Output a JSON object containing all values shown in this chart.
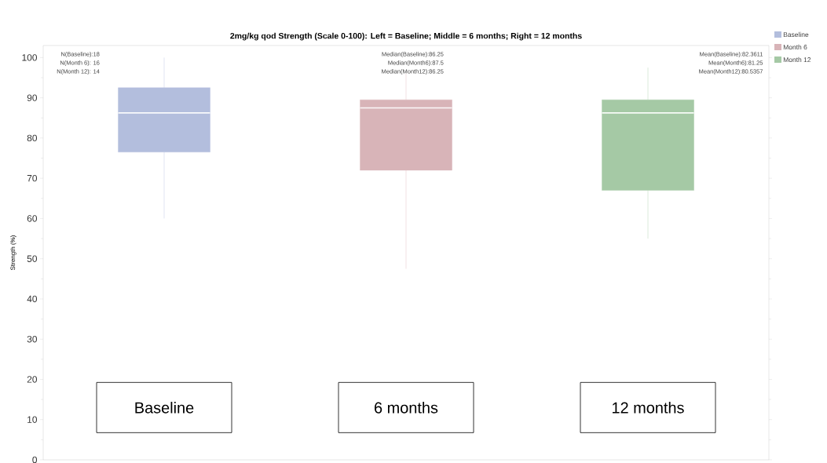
{
  "chart_data": {
    "type": "box",
    "title": "2mg/kg qod Strength (Scale 0-100):  Left = Baseline; Middle = 6 months; Right = 12 months",
    "ylabel": "Strength (%)",
    "categories": [
      "Baseline",
      "6 months",
      "12 months"
    ],
    "series": [
      {
        "name": "Baseline",
        "color": "#b3bedd",
        "boxes": [
          {
            "low": 60,
            "q1": 76.5,
            "median": 86.25,
            "q3": 92.5,
            "high": 100
          },
          null,
          null
        ]
      },
      {
        "name": "Month 6",
        "color": "#d8b4b8",
        "boxes": [
          null,
          {
            "low": 47.5,
            "q1": 72,
            "median": 87.5,
            "q3": 89.5,
            "high": 96
          },
          null
        ]
      },
      {
        "name": "Month 12",
        "color": "#a5c9a5",
        "boxes": [
          null,
          null,
          {
            "low": 55,
            "q1": 67,
            "median": 86.25,
            "q3": 89.5,
            "high": 97.5
          }
        ]
      }
    ],
    "ylim": [
      0,
      103
    ],
    "yticks": [
      0,
      10,
      20,
      30,
      40,
      50,
      60,
      70,
      80,
      90,
      100
    ],
    "grid": false,
    "legend": "top right",
    "annotations": [
      "N(Baseline):18",
      "N(Month 6): 16",
      "N(Month 12): 14",
      "Median(Baseline):86.25",
      "Median(Month6):87.5",
      "Median(Month12):86.25",
      "Mean(Baseline):82.3611",
      "Mean(Month6):81.25",
      "Mean(Month12):80.5357"
    ]
  }
}
